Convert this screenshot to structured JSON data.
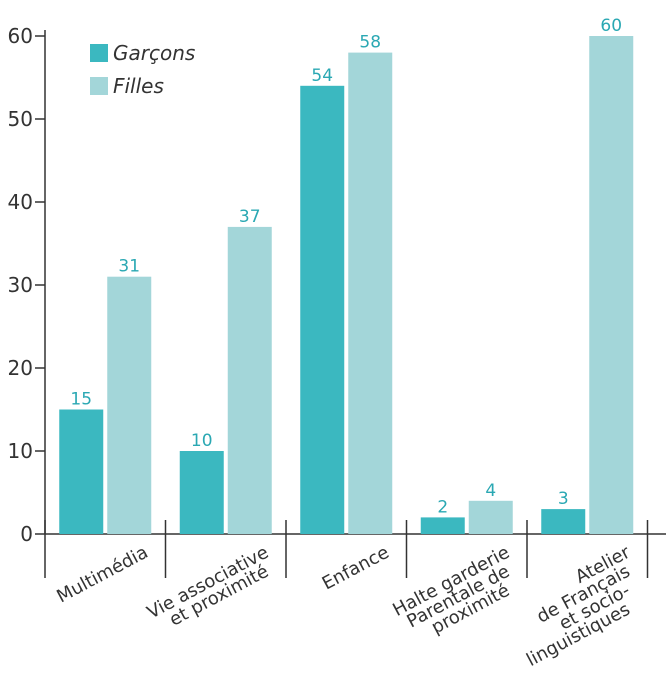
{
  "chart_data": {
    "type": "bar",
    "categories": [
      [
        "Multimédia"
      ],
      [
        "Vie associative",
        "et proximité"
      ],
      [
        "Enfance"
      ],
      [
        "Halte garderie",
        "Parentale de",
        "proximité"
      ],
      [
        "Atelier",
        "de Français",
        "et socio-",
        "linguistiques"
      ]
    ],
    "series": [
      {
        "name": "Garçons",
        "values": [
          15,
          10,
          54,
          2,
          3
        ],
        "color": "#3bb8c0"
      },
      {
        "name": "Filles",
        "values": [
          31,
          37,
          58,
          4,
          60
        ],
        "color": "#a3d6d9"
      }
    ],
    "value_label_color": "#2aa8b3",
    "ylim": [
      0,
      60
    ],
    "yticks": [
      0,
      10,
      20,
      30,
      40,
      50,
      60
    ],
    "legend": "top-left",
    "grid": false,
    "xlabel": "",
    "ylabel": "",
    "title": ""
  }
}
